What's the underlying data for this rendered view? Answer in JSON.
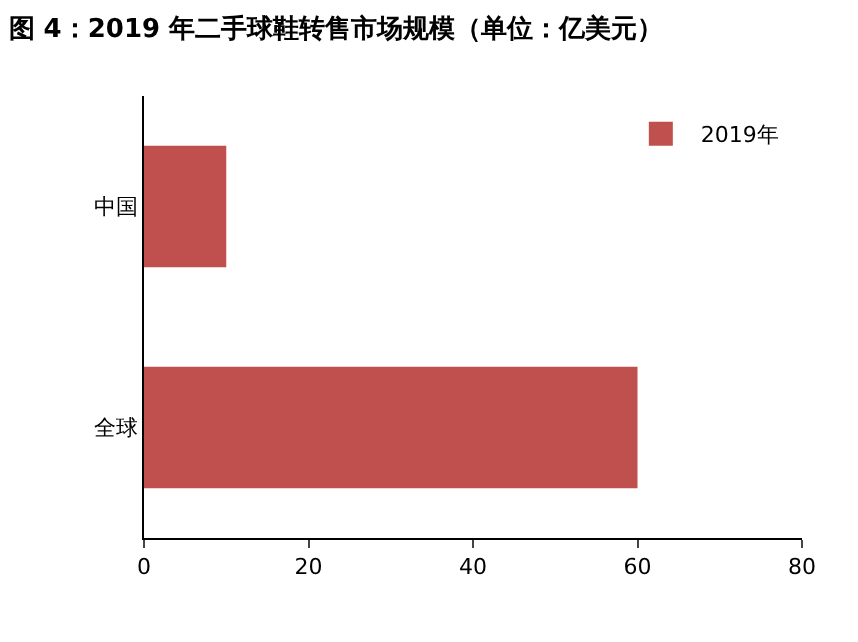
{
  "chart_data": {
    "type": "bar",
    "orientation": "horizontal",
    "title": "图 4：2019 年二手球鞋转售市场规模（单位：亿美元）",
    "categories": [
      "中国",
      "全球"
    ],
    "series": [
      {
        "name": "2019年",
        "color": "#c0504d",
        "values": [
          10,
          60
        ]
      }
    ],
    "xlim": [
      0,
      80
    ],
    "xticks": [
      0,
      20,
      40,
      60,
      80
    ],
    "legend": "top right"
  }
}
